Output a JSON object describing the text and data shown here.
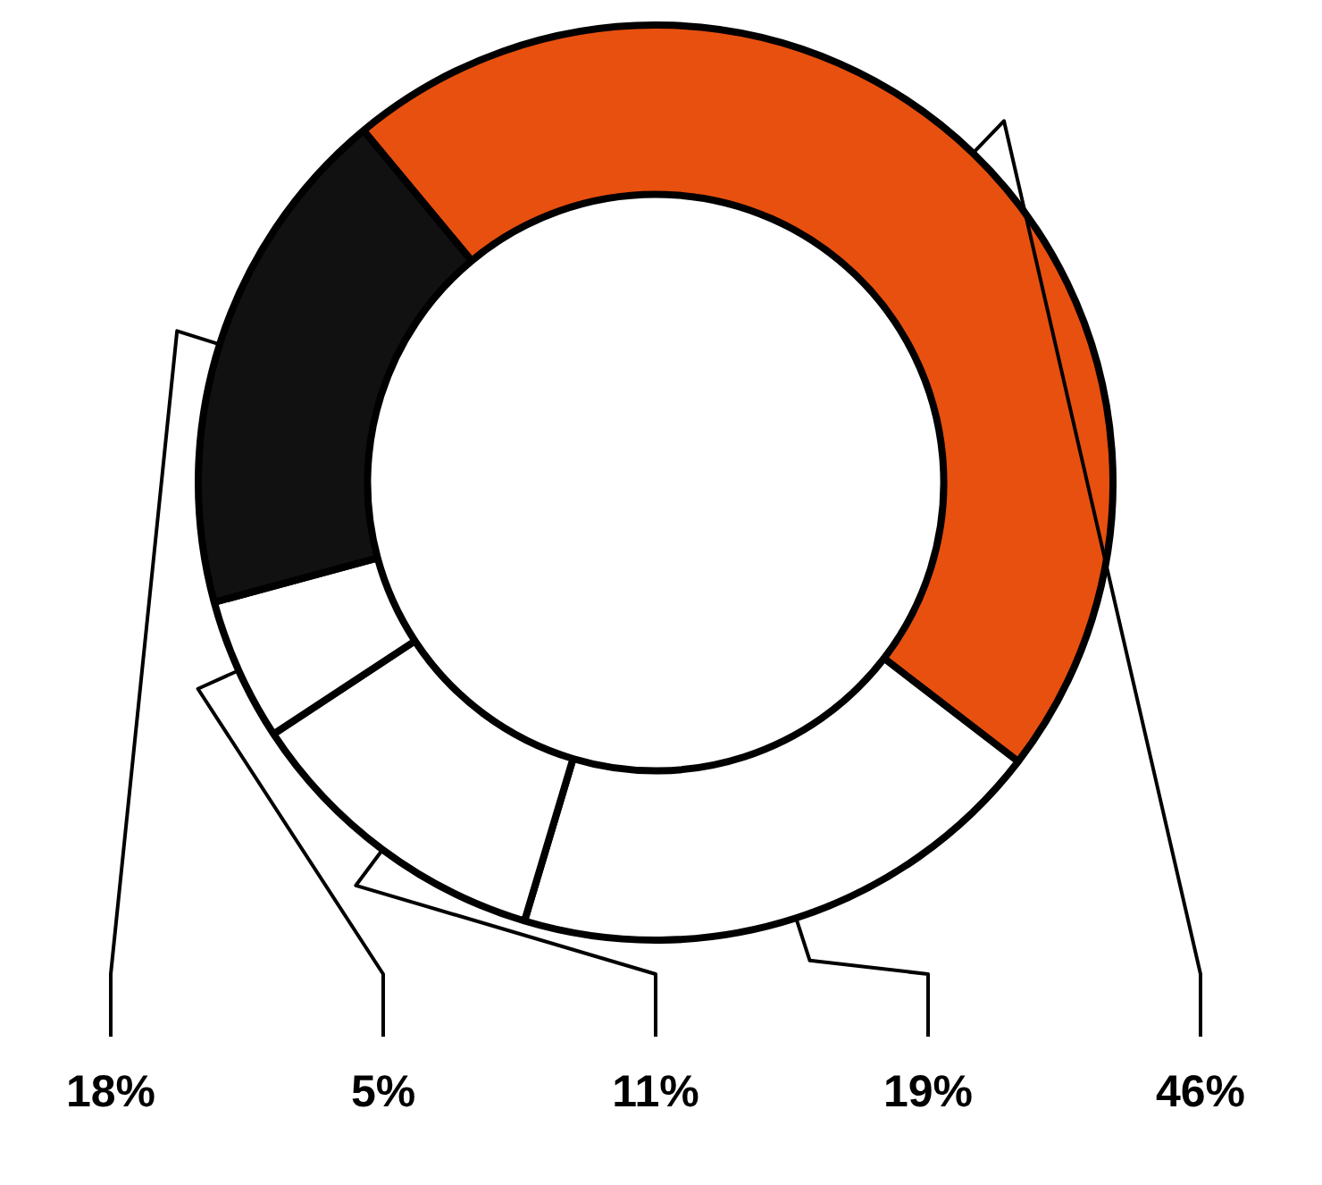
{
  "chart_data": {
    "type": "donut",
    "categories": [
      null,
      null,
      null,
      null,
      null
    ],
    "values": [
      46,
      19,
      11,
      5,
      18
    ],
    "colors": [
      "#e8500f",
      "#ffffff",
      "#ffffff",
      "#ffffff",
      "#111111"
    ],
    "value_labels": [
      "46%",
      "19%",
      "11%",
      "5%",
      "18%"
    ],
    "legend": false
  }
}
